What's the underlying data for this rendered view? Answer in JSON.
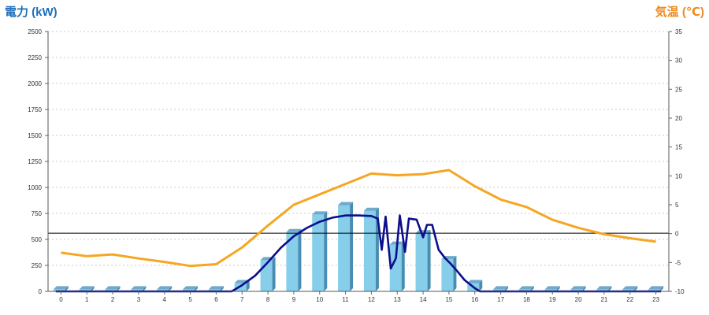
{
  "chart_data": {
    "type": "bar",
    "categories": [
      "0",
      "1",
      "2",
      "3",
      "4",
      "5",
      "6",
      "7",
      "8",
      "9",
      "10",
      "11",
      "12",
      "13",
      "14",
      "15",
      "16",
      "17",
      "18",
      "19",
      "20",
      "21",
      "22",
      "23"
    ],
    "y_left": {
      "label": "電力 (kW)",
      "color": "#1f6fb8",
      "min": 0,
      "max": 2500,
      "ticks": [
        0,
        250,
        500,
        750,
        1000,
        1250,
        1500,
        1750,
        2000,
        2250,
        2500
      ]
    },
    "y_right": {
      "label": "気温 (℃)",
      "color": "#ee8a1e",
      "min": -10,
      "max": 35,
      "ticks": [
        -10,
        -5,
        0,
        5,
        10,
        15,
        20,
        25,
        30,
        35
      ]
    },
    "bars": {
      "color": "#87ceea",
      "values": [
        20,
        20,
        20,
        20,
        20,
        20,
        20,
        80,
        300,
        570,
        740,
        830,
        775,
        450,
        560,
        310,
        80,
        20,
        20,
        20,
        20,
        20,
        20,
        20
      ]
    },
    "power_curve": {
      "color": "#0d0d8c",
      "points": [
        [
          -0.2,
          0
        ],
        [
          6.6,
          0
        ],
        [
          7,
          60
        ],
        [
          7.5,
          150
        ],
        [
          8,
          280
        ],
        [
          8.5,
          420
        ],
        [
          9,
          530
        ],
        [
          9.5,
          610
        ],
        [
          10,
          670
        ],
        [
          10.5,
          710
        ],
        [
          11,
          730
        ],
        [
          11.5,
          730
        ],
        [
          12,
          725
        ],
        [
          12.25,
          700
        ],
        [
          12.4,
          400
        ],
        [
          12.55,
          720
        ],
        [
          12.75,
          220
        ],
        [
          12.95,
          320
        ],
        [
          13.1,
          730
        ],
        [
          13.3,
          380
        ],
        [
          13.45,
          700
        ],
        [
          13.75,
          690
        ],
        [
          14,
          520
        ],
        [
          14.15,
          640
        ],
        [
          14.35,
          640
        ],
        [
          14.6,
          400
        ],
        [
          14.85,
          320
        ],
        [
          15.05,
          270
        ],
        [
          15.3,
          200
        ],
        [
          15.6,
          110
        ],
        [
          16,
          30
        ],
        [
          16.2,
          0
        ],
        [
          23.2,
          0
        ]
      ]
    },
    "temperature": {
      "color": "#f5a623",
      "values": [
        -3.3,
        -3.9,
        -3.6,
        -4.3,
        -4.9,
        -5.6,
        -5.3,
        -2.4,
        1.4,
        5.0,
        6.8,
        8.6,
        10.4,
        10.1,
        10.3,
        11.0,
        8.2,
        5.9,
        4.6,
        2.4,
        1.0,
        -0.1,
        -0.8,
        -1.4
      ]
    },
    "reference_line": {
      "y": 560,
      "color": "#000000"
    },
    "grid": true
  }
}
